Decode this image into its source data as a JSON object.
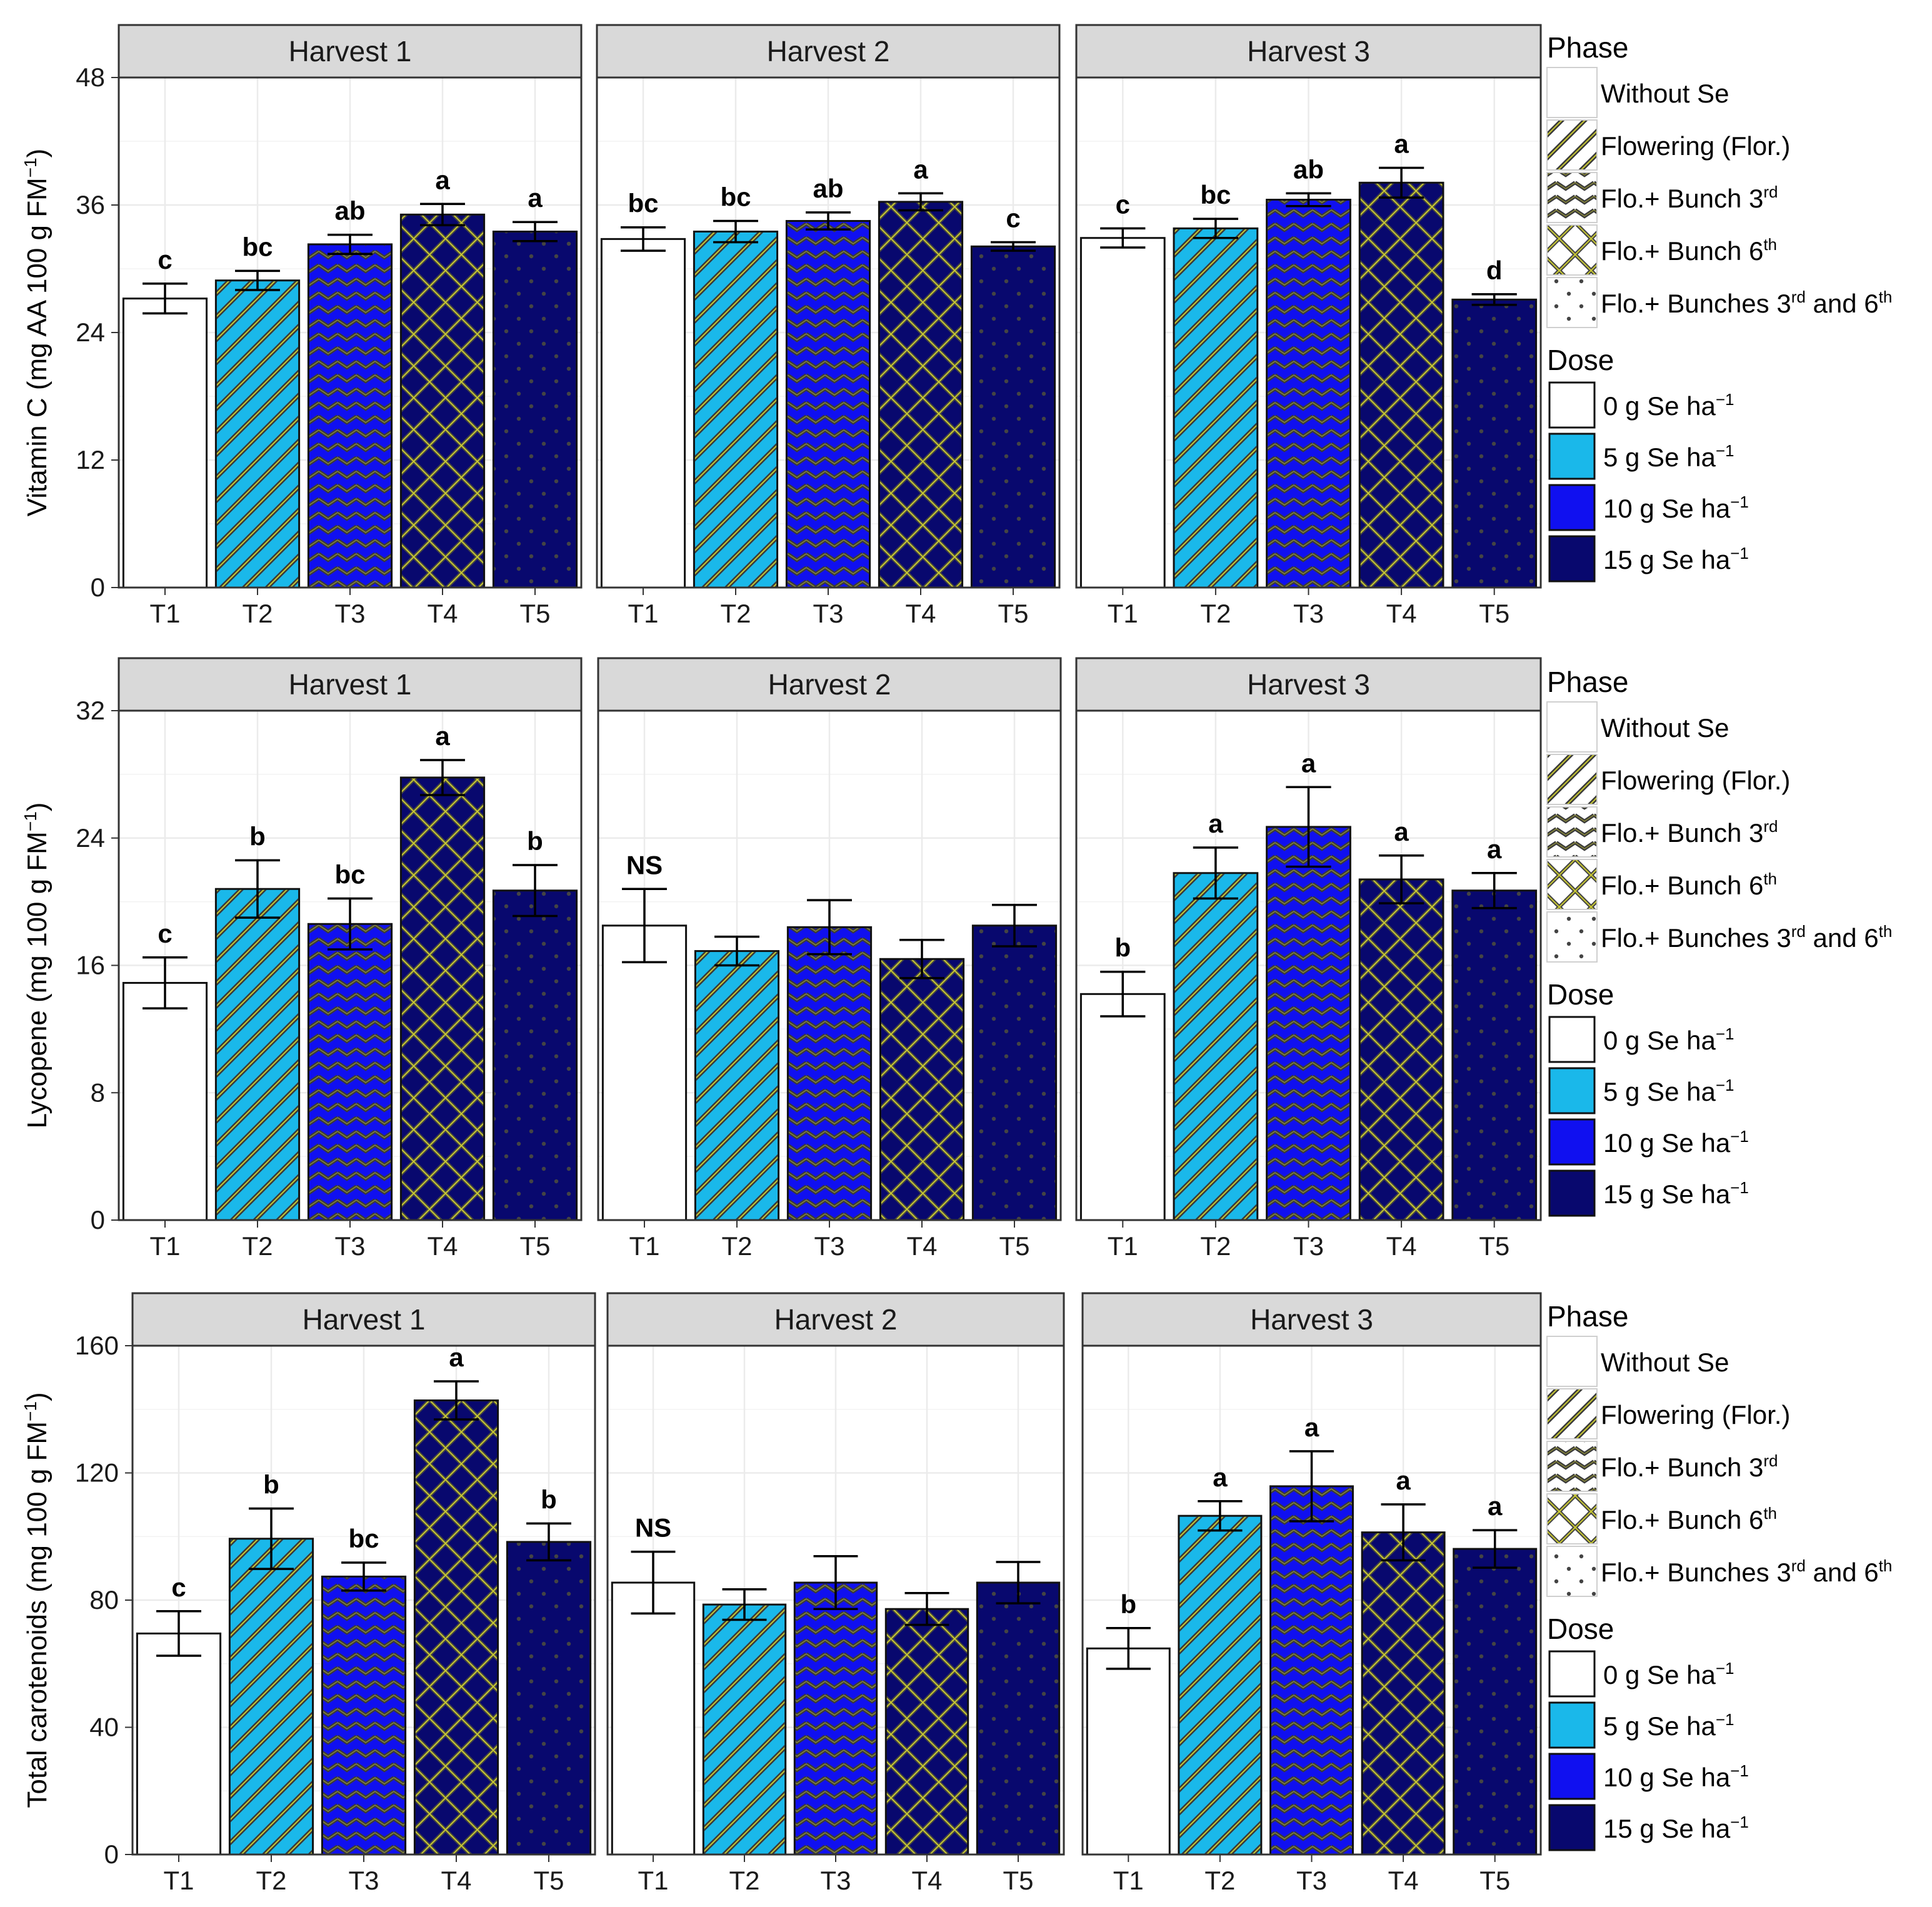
{
  "colors": {
    "dose_0": "#ffffff",
    "dose_5": "#1ab8ea",
    "dose_10": "#1010f0",
    "dose_15": "#08086e",
    "strip_bg": "#d9d9d9",
    "grid": "#ebebeb",
    "pattern_line": "#c8c832"
  },
  "legend": {
    "phase_title": "Phase",
    "phase_items": [
      {
        "label": "Without Se",
        "sup": "",
        "suffix": "",
        "pattern": "none"
      },
      {
        "label": "Flowering (Flor.)",
        "sup": "",
        "suffix": "",
        "pattern": "stripe"
      },
      {
        "label": "Flo.+ Bunch 3",
        "sup": "rd",
        "suffix": "",
        "pattern": "zigzag"
      },
      {
        "label": "Flo.+ Bunch 6",
        "sup": "th",
        "suffix": "",
        "pattern": "crosshatch"
      },
      {
        "label": "Flo.+ Bunches 3",
        "sup": "rd",
        "suffix": " and 6",
        "sup2": "th",
        "pattern": "dots"
      }
    ],
    "dose_title": "Dose",
    "dose_items": [
      {
        "label": "0 g Se ha",
        "sup": "−1",
        "color_key": "dose_0"
      },
      {
        "label": "5 g Se ha",
        "sup": "−1",
        "color_key": "dose_5"
      },
      {
        "label": "10 g Se ha",
        "sup": "−1",
        "color_key": "dose_10"
      },
      {
        "label": "15 g Se ha",
        "sup": "−1",
        "color_key": "dose_15"
      }
    ]
  },
  "chart_data": [
    {
      "type": "bar",
      "ylabel": "Vitamin C (mg AA 100 g FM",
      "ylabel_sup": "−1",
      "ylabel_close": ")",
      "ylim": [
        0,
        48
      ],
      "yticks": [
        0,
        12,
        24,
        36,
        48
      ],
      "categories": [
        "T1",
        "T2",
        "T3",
        "T4",
        "T5"
      ],
      "panels": [
        {
          "title": "Harvest 1",
          "values": [
            27.2,
            28.9,
            32.3,
            35.1,
            33.5
          ],
          "errors": [
            1.4,
            0.9,
            0.9,
            1.0,
            0.9
          ],
          "letters": [
            "c",
            "bc",
            "ab",
            "a",
            "a"
          ]
        },
        {
          "title": "Harvest 2",
          "values": [
            32.8,
            33.5,
            34.5,
            36.3,
            32.1
          ],
          "errors": [
            1.1,
            1.0,
            0.8,
            0.8,
            0.4
          ],
          "letters": [
            "bc",
            "bc",
            "ab",
            "a",
            "c"
          ]
        },
        {
          "title": "Harvest 3",
          "values": [
            32.9,
            33.8,
            36.5,
            38.1,
            27.1
          ],
          "errors": [
            0.9,
            0.9,
            0.6,
            1.4,
            0.5
          ],
          "letters": [
            "c",
            "bc",
            "ab",
            "a",
            "d"
          ]
        }
      ]
    },
    {
      "type": "bar",
      "ylabel": "Lycopene (mg 100 g FM",
      "ylabel_sup": "−1",
      "ylabel_close": ")",
      "ylim": [
        0,
        32
      ],
      "yticks": [
        0,
        8,
        16,
        24,
        32
      ],
      "categories": [
        "T1",
        "T2",
        "T3",
        "T4",
        "T5"
      ],
      "panels": [
        {
          "title": "Harvest 1",
          "values": [
            14.9,
            20.8,
            18.6,
            27.8,
            20.7
          ],
          "errors": [
            1.6,
            1.8,
            1.6,
            1.1,
            1.6
          ],
          "letters": [
            "c",
            "b",
            "bc",
            "a",
            "b"
          ]
        },
        {
          "title": "Harvest 2",
          "values": [
            18.5,
            16.9,
            18.4,
            16.4,
            18.5
          ],
          "errors": [
            2.3,
            0.9,
            1.7,
            1.2,
            1.3
          ],
          "letters": [
            "NS",
            "",
            "",
            "",
            ""
          ]
        },
        {
          "title": "Harvest 3",
          "values": [
            14.2,
            21.8,
            24.7,
            21.4,
            20.7
          ],
          "errors": [
            1.4,
            1.6,
            2.5,
            1.5,
            1.1
          ],
          "letters": [
            "b",
            "a",
            "a",
            "a",
            "a"
          ]
        }
      ]
    },
    {
      "type": "bar",
      "ylabel": "Total carotenoids (mg 100 g FM",
      "ylabel_sup": "−1",
      "ylabel_close": ")",
      "ylim": [
        0,
        160
      ],
      "yticks": [
        0,
        40,
        80,
        120,
        160
      ],
      "categories": [
        "T1",
        "T2",
        "T3",
        "T4",
        "T5"
      ],
      "panels": [
        {
          "title": "Harvest 1",
          "values": [
            69.5,
            99.3,
            87.4,
            142.8,
            98.3
          ],
          "errors": [
            7.0,
            9.5,
            4.4,
            6.0,
            5.8
          ],
          "letters": [
            "c",
            "b",
            "bc",
            "a",
            "b"
          ]
        },
        {
          "title": "Harvest 2",
          "values": [
            85.5,
            78.6,
            85.5,
            77.2,
            85.5
          ],
          "errors": [
            9.7,
            4.8,
            8.3,
            5.0,
            6.5
          ],
          "letters": [
            "NS",
            "",
            "",
            "",
            ""
          ]
        },
        {
          "title": "Harvest 3",
          "values": [
            64.8,
            106.5,
            115.8,
            101.3,
            96.1
          ],
          "errors": [
            6.4,
            4.6,
            11.0,
            8.8,
            5.9
          ],
          "letters": [
            "b",
            "a",
            "a",
            "a",
            "a"
          ]
        }
      ]
    }
  ]
}
